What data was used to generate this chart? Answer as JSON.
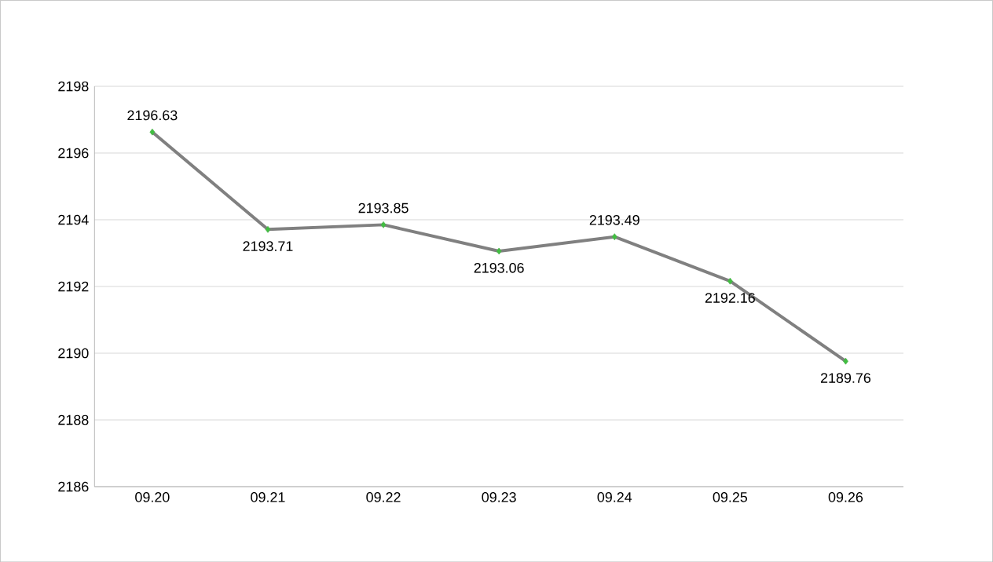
{
  "chart_data": {
    "type": "line",
    "categories": [
      "09.20",
      "09.21",
      "09.22",
      "09.23",
      "09.24",
      "09.25",
      "09.26"
    ],
    "values": [
      2196.63,
      2193.71,
      2193.85,
      2193.06,
      2193.49,
      2192.16,
      2189.76
    ],
    "color": "#808080",
    "ylim": [
      2186,
      2198
    ],
    "yticks": [
      2186,
      2188,
      2190,
      2192,
      2194,
      2196,
      2198
    ],
    "grid": "y",
    "marker": "diamond",
    "data_labels": true
  }
}
